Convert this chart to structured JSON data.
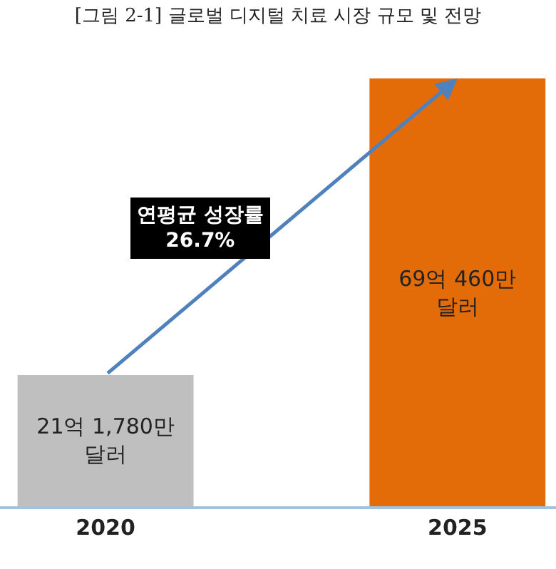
{
  "chart_data": {
    "type": "bar",
    "title": "[그림 2-1] 글로벌 디지털 치료 시장 규모 및 전망",
    "categories": [
      "2020",
      "2025"
    ],
    "values": [
      21.178,
      69.046
    ],
    "colors": [
      "#bfbfbf",
      "#e36c09"
    ],
    "value_labels": [
      "21억 1,780만\n달러",
      "69억 460만\n달러"
    ],
    "annotations": [
      "연평균 성장률\n26.7%"
    ]
  }
}
